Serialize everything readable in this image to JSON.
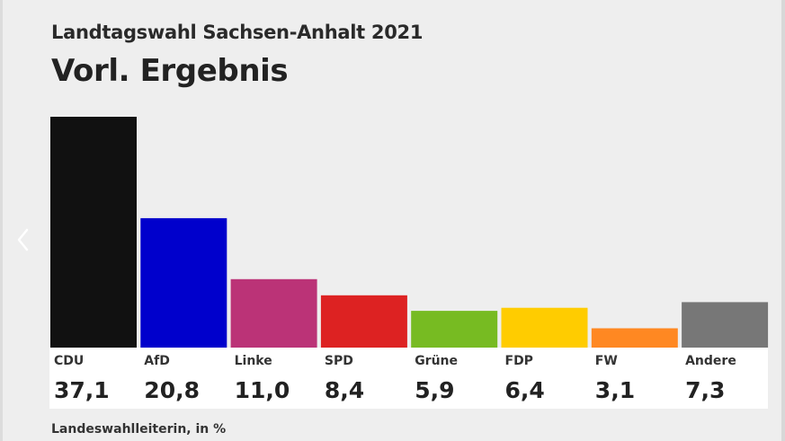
{
  "header": {
    "subtitle": "Landtagswahl Sachsen-Anhalt 2021",
    "title": "Vorl. Ergebnis"
  },
  "source": "Landeswahlleiterin, in %",
  "navigation": {
    "previous_icon": "chevron-left-icon"
  },
  "chart_data": {
    "type": "bar",
    "categories": [
      "CDU",
      "AfD",
      "Linke",
      "SPD",
      "Grüne",
      "FDP",
      "FW",
      "Andere"
    ],
    "values": [
      37.1,
      20.8,
      11.0,
      8.4,
      5.9,
      6.4,
      3.1,
      7.3
    ],
    "value_labels": [
      "37,1",
      "20,8",
      "11,0",
      "8,4",
      "5,9",
      "6,4",
      "3,1",
      "7,3"
    ],
    "colors": [
      "#111111",
      "#0000cc",
      "#bb3377",
      "#dd2222",
      "#77bb22",
      "#ffcc00",
      "#ff8822",
      "#777777"
    ],
    "title": "Vorl. Ergebnis",
    "xlabel": "",
    "ylabel": "",
    "ylim": [
      0,
      37.1
    ],
    "grid": false,
    "legend": "none"
  }
}
